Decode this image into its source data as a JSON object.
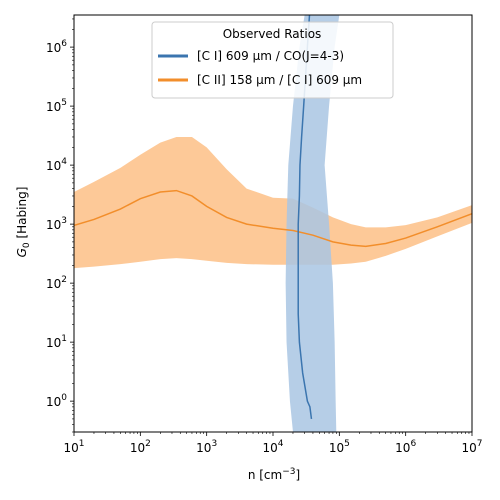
{
  "chart_data": {
    "type": "line",
    "title": "",
    "xlabel": "n [cm",
    "xlabel_exp": "−3",
    "xlabel_close": "]",
    "ylabel": "G",
    "ylabel_sub": "0",
    "ylabel_rest": " [Habing]",
    "xscale": "log",
    "yscale": "log",
    "xlim": [
      10,
      10000000
    ],
    "ylim": [
      0.3,
      3500000
    ],
    "x_ticks": [
      {
        "value": 10,
        "base": "10",
        "exp": "1"
      },
      {
        "value": 100,
        "base": "10",
        "exp": "2"
      },
      {
        "value": 1000,
        "base": "10",
        "exp": "3"
      },
      {
        "value": 10000,
        "base": "10",
        "exp": "4"
      },
      {
        "value": 100000,
        "base": "10",
        "exp": "5"
      },
      {
        "value": 1000000,
        "base": "10",
        "exp": "6"
      },
      {
        "value": 10000000,
        "base": "10",
        "exp": "7"
      }
    ],
    "y_ticks": [
      {
        "value": 1,
        "base": "10",
        "exp": "0"
      },
      {
        "value": 10,
        "base": "10",
        "exp": "1"
      },
      {
        "value": 100,
        "base": "10",
        "exp": "2"
      },
      {
        "value": 1000,
        "base": "10",
        "exp": "3"
      },
      {
        "value": 10000,
        "base": "10",
        "exp": "4"
      },
      {
        "value": 100000,
        "base": "10",
        "exp": "5"
      },
      {
        "value": 1000000,
        "base": "10",
        "exp": "6"
      }
    ],
    "legend": {
      "title": "Observed Ratios",
      "placement": "top-center",
      "entries": [
        {
          "series": 0,
          "label": "[C I] 609 μm / CO(J=4-3)"
        },
        {
          "series": 1,
          "label": "[C II] 158 μm / [C I] 609 μm"
        }
      ]
    },
    "series": [
      {
        "name": "[C I] 609 μm / CO(J=4-3)",
        "color": "#3b75af",
        "band_color": "#a9c6e3",
        "line_y": [
          0.5,
          0.8,
          1,
          3,
          10,
          30,
          100,
          300,
          1000,
          3000,
          10000,
          30000,
          100000,
          1000000,
          3500000
        ],
        "line_x": [
          38000,
          36000,
          33000,
          28000,
          25000,
          24000,
          24000,
          24000,
          24000,
          25000,
          25500,
          27000,
          29000,
          33000,
          35500
        ],
        "band_y": [
          0.3,
          1,
          10,
          100,
          1000,
          10000,
          100000,
          1000000,
          3500000
        ],
        "band_lo_x": [
          20000,
          18000,
          16000,
          15500,
          16000,
          17000,
          20000,
          25000,
          30000
        ],
        "band_hi_x": [
          90000,
          88000,
          85000,
          80000,
          70000,
          60000,
          70000,
          85000,
          100000
        ]
      },
      {
        "name": "[C II] 158 μm / [C I] 609 μm",
        "color": "#f28e2b",
        "band_color": "#fdbf86",
        "x": [
          10,
          20,
          50,
          100,
          200,
          350,
          600,
          1000,
          2000,
          4000,
          10000,
          20000,
          40000,
          80000,
          150000,
          250000,
          500000,
          1000000,
          3000000,
          10000000
        ],
        "y": [
          950,
          1200,
          1800,
          2700,
          3500,
          3700,
          3000,
          2000,
          1300,
          1000,
          850,
          780,
          650,
          500,
          440,
          420,
          470,
          580,
          900,
          1500
        ],
        "band_lo": [
          180,
          190,
          210,
          230,
          255,
          265,
          255,
          240,
          220,
          210,
          205,
          205,
          205,
          205,
          215,
          230,
          290,
          380,
          620,
          1050
        ],
        "band_hi": [
          3500,
          5200,
          9000,
          15000,
          24000,
          30000,
          30000,
          20000,
          8500,
          4000,
          2800,
          2700,
          1900,
          1300,
          1000,
          880,
          880,
          960,
          1300,
          2100
        ]
      }
    ]
  }
}
